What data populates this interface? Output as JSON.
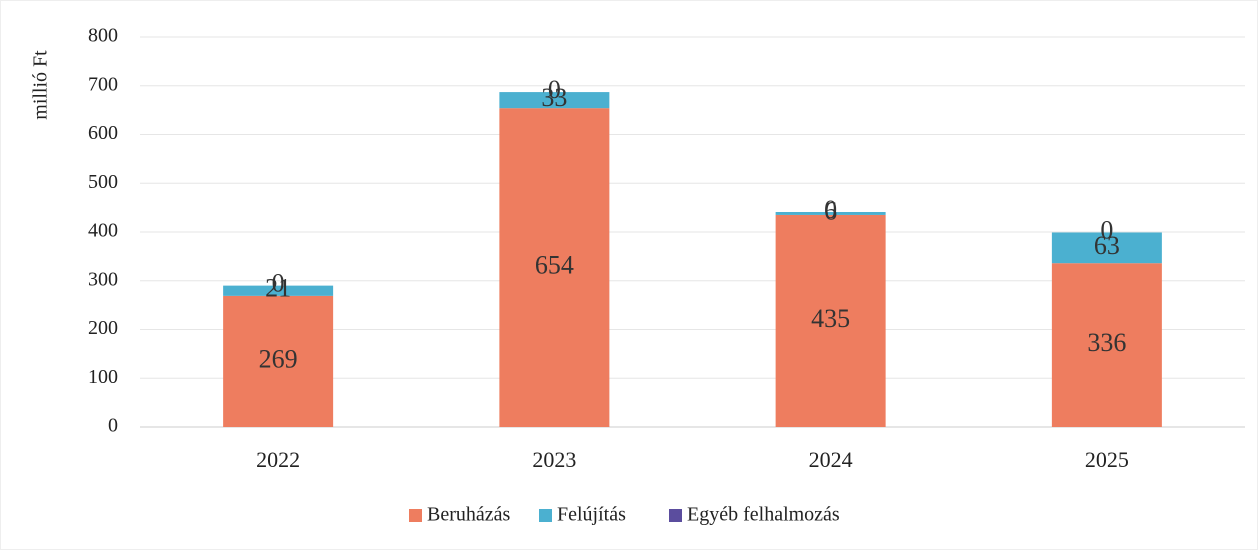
{
  "chart_data": {
    "type": "bar",
    "stacked": true,
    "y_label": "millió Ft",
    "categories": [
      "2022",
      "2023",
      "2024",
      "2025"
    ],
    "series": [
      {
        "name": "Beruházás",
        "color": "#ee7d5f",
        "values": [
          269,
          654,
          435,
          336
        ]
      },
      {
        "name": "Felújítás",
        "color": "#4bb0d0",
        "values": [
          21,
          33,
          6,
          63
        ]
      },
      {
        "name": "Egyéb felhalmozás",
        "color": "#5b4d9e",
        "values": [
          0,
          0,
          0,
          0
        ]
      }
    ],
    "ylim": [
      0,
      800
    ],
    "yticks": [
      0,
      100,
      200,
      300,
      400,
      500,
      600,
      700,
      800
    ],
    "grid": true,
    "legend": "bottom"
  }
}
